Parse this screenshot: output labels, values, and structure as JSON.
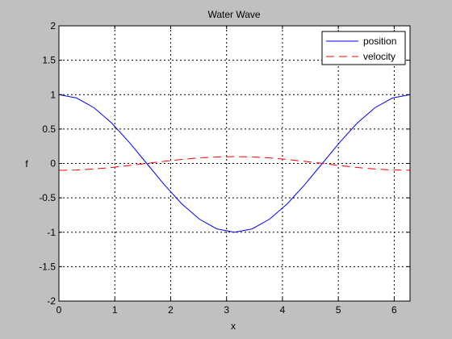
{
  "chart_data": {
    "type": "line",
    "title": "Water Wave",
    "xlabel": "x",
    "ylabel": "f",
    "xlim": [
      0,
      6.2832
    ],
    "ylim": [
      -2,
      2
    ],
    "xticks": [
      0,
      1,
      2,
      3,
      4,
      5,
      6
    ],
    "yticks": [
      -2,
      -1.5,
      -1,
      -0.5,
      0,
      0.5,
      1,
      1.5,
      2
    ],
    "xtick_labels": [
      "0",
      "1",
      "2",
      "3",
      "4",
      "5",
      "6"
    ],
    "ytick_labels": [
      "-2",
      "-1.5",
      "-1",
      "-0.5",
      "0",
      "0.5",
      "1",
      "1.5",
      "2"
    ],
    "grid": true,
    "legend_position": "top-right",
    "x": [
      0,
      0.3142,
      0.6283,
      0.9425,
      1.2566,
      1.5708,
      1.885,
      2.1991,
      2.5133,
      2.8274,
      3.1416,
      3.4558,
      3.7699,
      4.0841,
      4.3982,
      4.7124,
      5.0265,
      5.3407,
      5.6549,
      5.969,
      6.2832
    ],
    "series": [
      {
        "name": "position",
        "color": "#0000ff",
        "style": "solid",
        "values": [
          1.0,
          0.951,
          0.809,
          0.588,
          0.309,
          0.0,
          -0.309,
          -0.588,
          -0.809,
          -0.951,
          -1.0,
          -0.951,
          -0.809,
          -0.588,
          -0.309,
          0.0,
          0.309,
          0.588,
          0.809,
          0.951,
          1.0
        ]
      },
      {
        "name": "velocity",
        "color": "#ff0000",
        "style": "dashed",
        "values": [
          -0.1,
          -0.095,
          -0.081,
          -0.059,
          -0.031,
          0.0,
          0.031,
          0.059,
          0.081,
          0.095,
          0.1,
          0.095,
          0.081,
          0.059,
          0.031,
          0.0,
          -0.031,
          -0.059,
          -0.081,
          -0.095,
          -0.1
        ]
      }
    ]
  }
}
